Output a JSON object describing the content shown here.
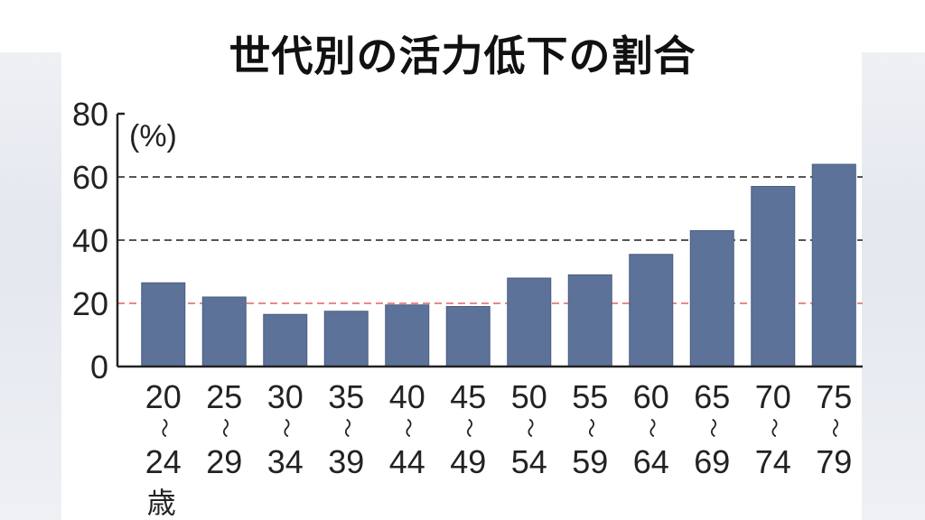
{
  "title": "世代別の活力低下の割合",
  "colors": {
    "bar": "#5d7299",
    "gridline": "#555555",
    "reference_line": "#e88a8a",
    "axis": "#222222"
  },
  "chart_data": {
    "type": "bar",
    "title": "世代別の活力低下の割合",
    "unit_label": "(%)",
    "ylim": [
      0,
      80
    ],
    "yticks": [
      "0",
      "20",
      "40",
      "60",
      "80"
    ],
    "gridlines": [
      {
        "value": 60,
        "style": "dashed",
        "color": "dark"
      },
      {
        "value": 40,
        "style": "dashed",
        "color": "dark"
      },
      {
        "value": 20,
        "style": "dashed",
        "color": "red"
      }
    ],
    "categories": [
      {
        "top": "20",
        "bottom": "24",
        "suffix": "歳"
      },
      {
        "top": "25",
        "bottom": "29"
      },
      {
        "top": "30",
        "bottom": "34"
      },
      {
        "top": "35",
        "bottom": "39"
      },
      {
        "top": "40",
        "bottom": "44"
      },
      {
        "top": "45",
        "bottom": "49"
      },
      {
        "top": "50",
        "bottom": "54"
      },
      {
        "top": "55",
        "bottom": "59"
      },
      {
        "top": "60",
        "bottom": "64"
      },
      {
        "top": "65",
        "bottom": "69"
      },
      {
        "top": "70",
        "bottom": "74"
      },
      {
        "top": "75",
        "bottom": "79"
      }
    ],
    "range_mark": "～",
    "values": [
      26.5,
      22,
      16.5,
      17.5,
      19.5,
      19,
      28,
      29,
      35.5,
      43,
      57,
      64
    ]
  }
}
